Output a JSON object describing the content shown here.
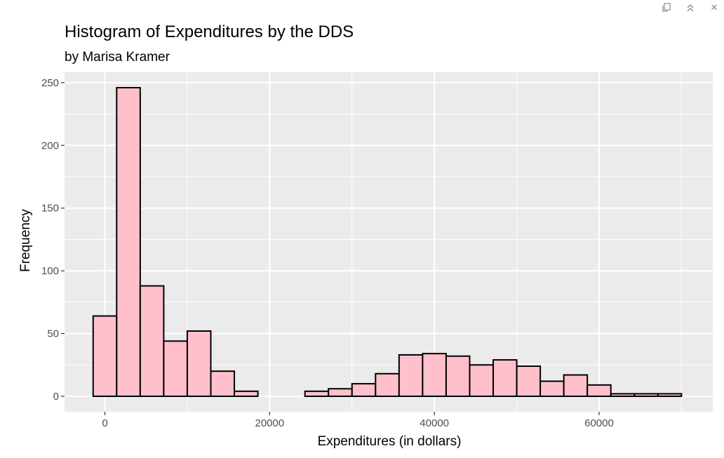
{
  "toolbar": {
    "icons": [
      "copy-icon",
      "collapse-icon",
      "close-icon"
    ],
    "close_glyph": "✕"
  },
  "chart_data": {
    "type": "bar",
    "title": "Histogram of Expenditures by the DDS",
    "subtitle": "by Marisa Kramer",
    "xlabel": "Expenditures (in dollars)",
    "ylabel": "Frequency",
    "bin_width": 2857,
    "x": [
      0,
      2857,
      5714,
      8571,
      11429,
      14286,
      17143,
      20000,
      22857,
      25714,
      28571,
      31429,
      34286,
      37143,
      40000,
      42857,
      45714,
      48571,
      51429,
      54286,
      57143,
      60000,
      62857,
      65714,
      68571
    ],
    "values": [
      64,
      246,
      88,
      44,
      52,
      20,
      4,
      0,
      0,
      4,
      6,
      10,
      18,
      33,
      34,
      32,
      25,
      29,
      24,
      12,
      17,
      9,
      2,
      2,
      2
    ],
    "xlim": [
      -4900,
      73800
    ],
    "ylim": [
      -12.3,
      258.3
    ],
    "xticks": [
      0,
      20000,
      40000,
      60000
    ],
    "yticks": [
      0,
      50,
      100,
      150,
      200,
      250
    ],
    "grid": true,
    "colors": {
      "fill": "#ffc0cb",
      "stroke": "#000000",
      "panel": "#ebebeb",
      "grid": "#ffffff"
    }
  }
}
